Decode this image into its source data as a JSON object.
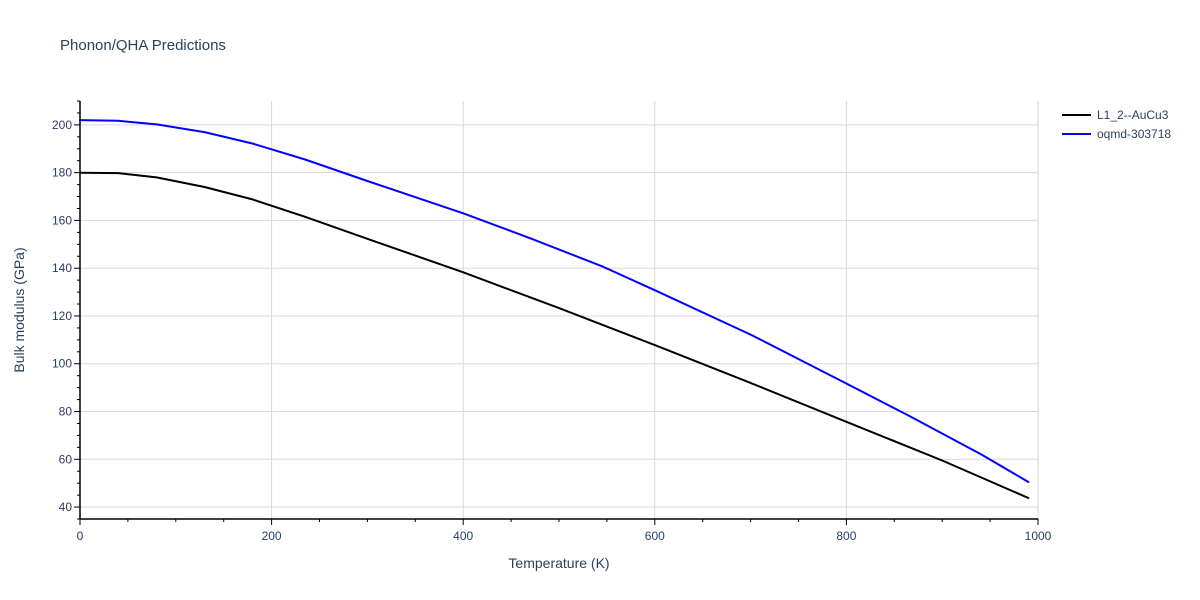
{
  "chart_data": {
    "type": "line",
    "title": "Phonon/QHA Predictions",
    "xlabel": "Temperature (K)",
    "ylabel": "Bulk modulus (GPa)",
    "xlim": [
      0,
      1000
    ],
    "ylim": [
      35,
      210
    ],
    "x_ticks": [
      0,
      200,
      400,
      600,
      800,
      1000
    ],
    "y_ticks": [
      40,
      60,
      80,
      100,
      120,
      140,
      160,
      180,
      200
    ],
    "grid": true,
    "legend_position": "top-right",
    "series": [
      {
        "name": "L1_2--AuCu3",
        "color": "#000000",
        "x": [
          0,
          40,
          80,
          130,
          180,
          235,
          300,
          400,
          500,
          600,
          700,
          800,
          900,
          990
        ],
        "y": [
          180,
          179.8,
          178,
          174,
          168.8,
          161.5,
          152.3,
          138.3,
          123.3,
          107.8,
          92,
          75.7,
          59.5,
          43.8
        ]
      },
      {
        "name": "oqmd-303718",
        "color": "#0000ff",
        "x": [
          0,
          40,
          80,
          130,
          180,
          235,
          300,
          400,
          470,
          545,
          600,
          700,
          790,
          865,
          940,
          990
        ],
        "y": [
          202,
          201.7,
          200.2,
          197,
          192.2,
          185.5,
          176.5,
          163,
          152.5,
          140.8,
          130.8,
          112.2,
          93.8,
          78.3,
          62.2,
          50.5
        ]
      }
    ]
  }
}
